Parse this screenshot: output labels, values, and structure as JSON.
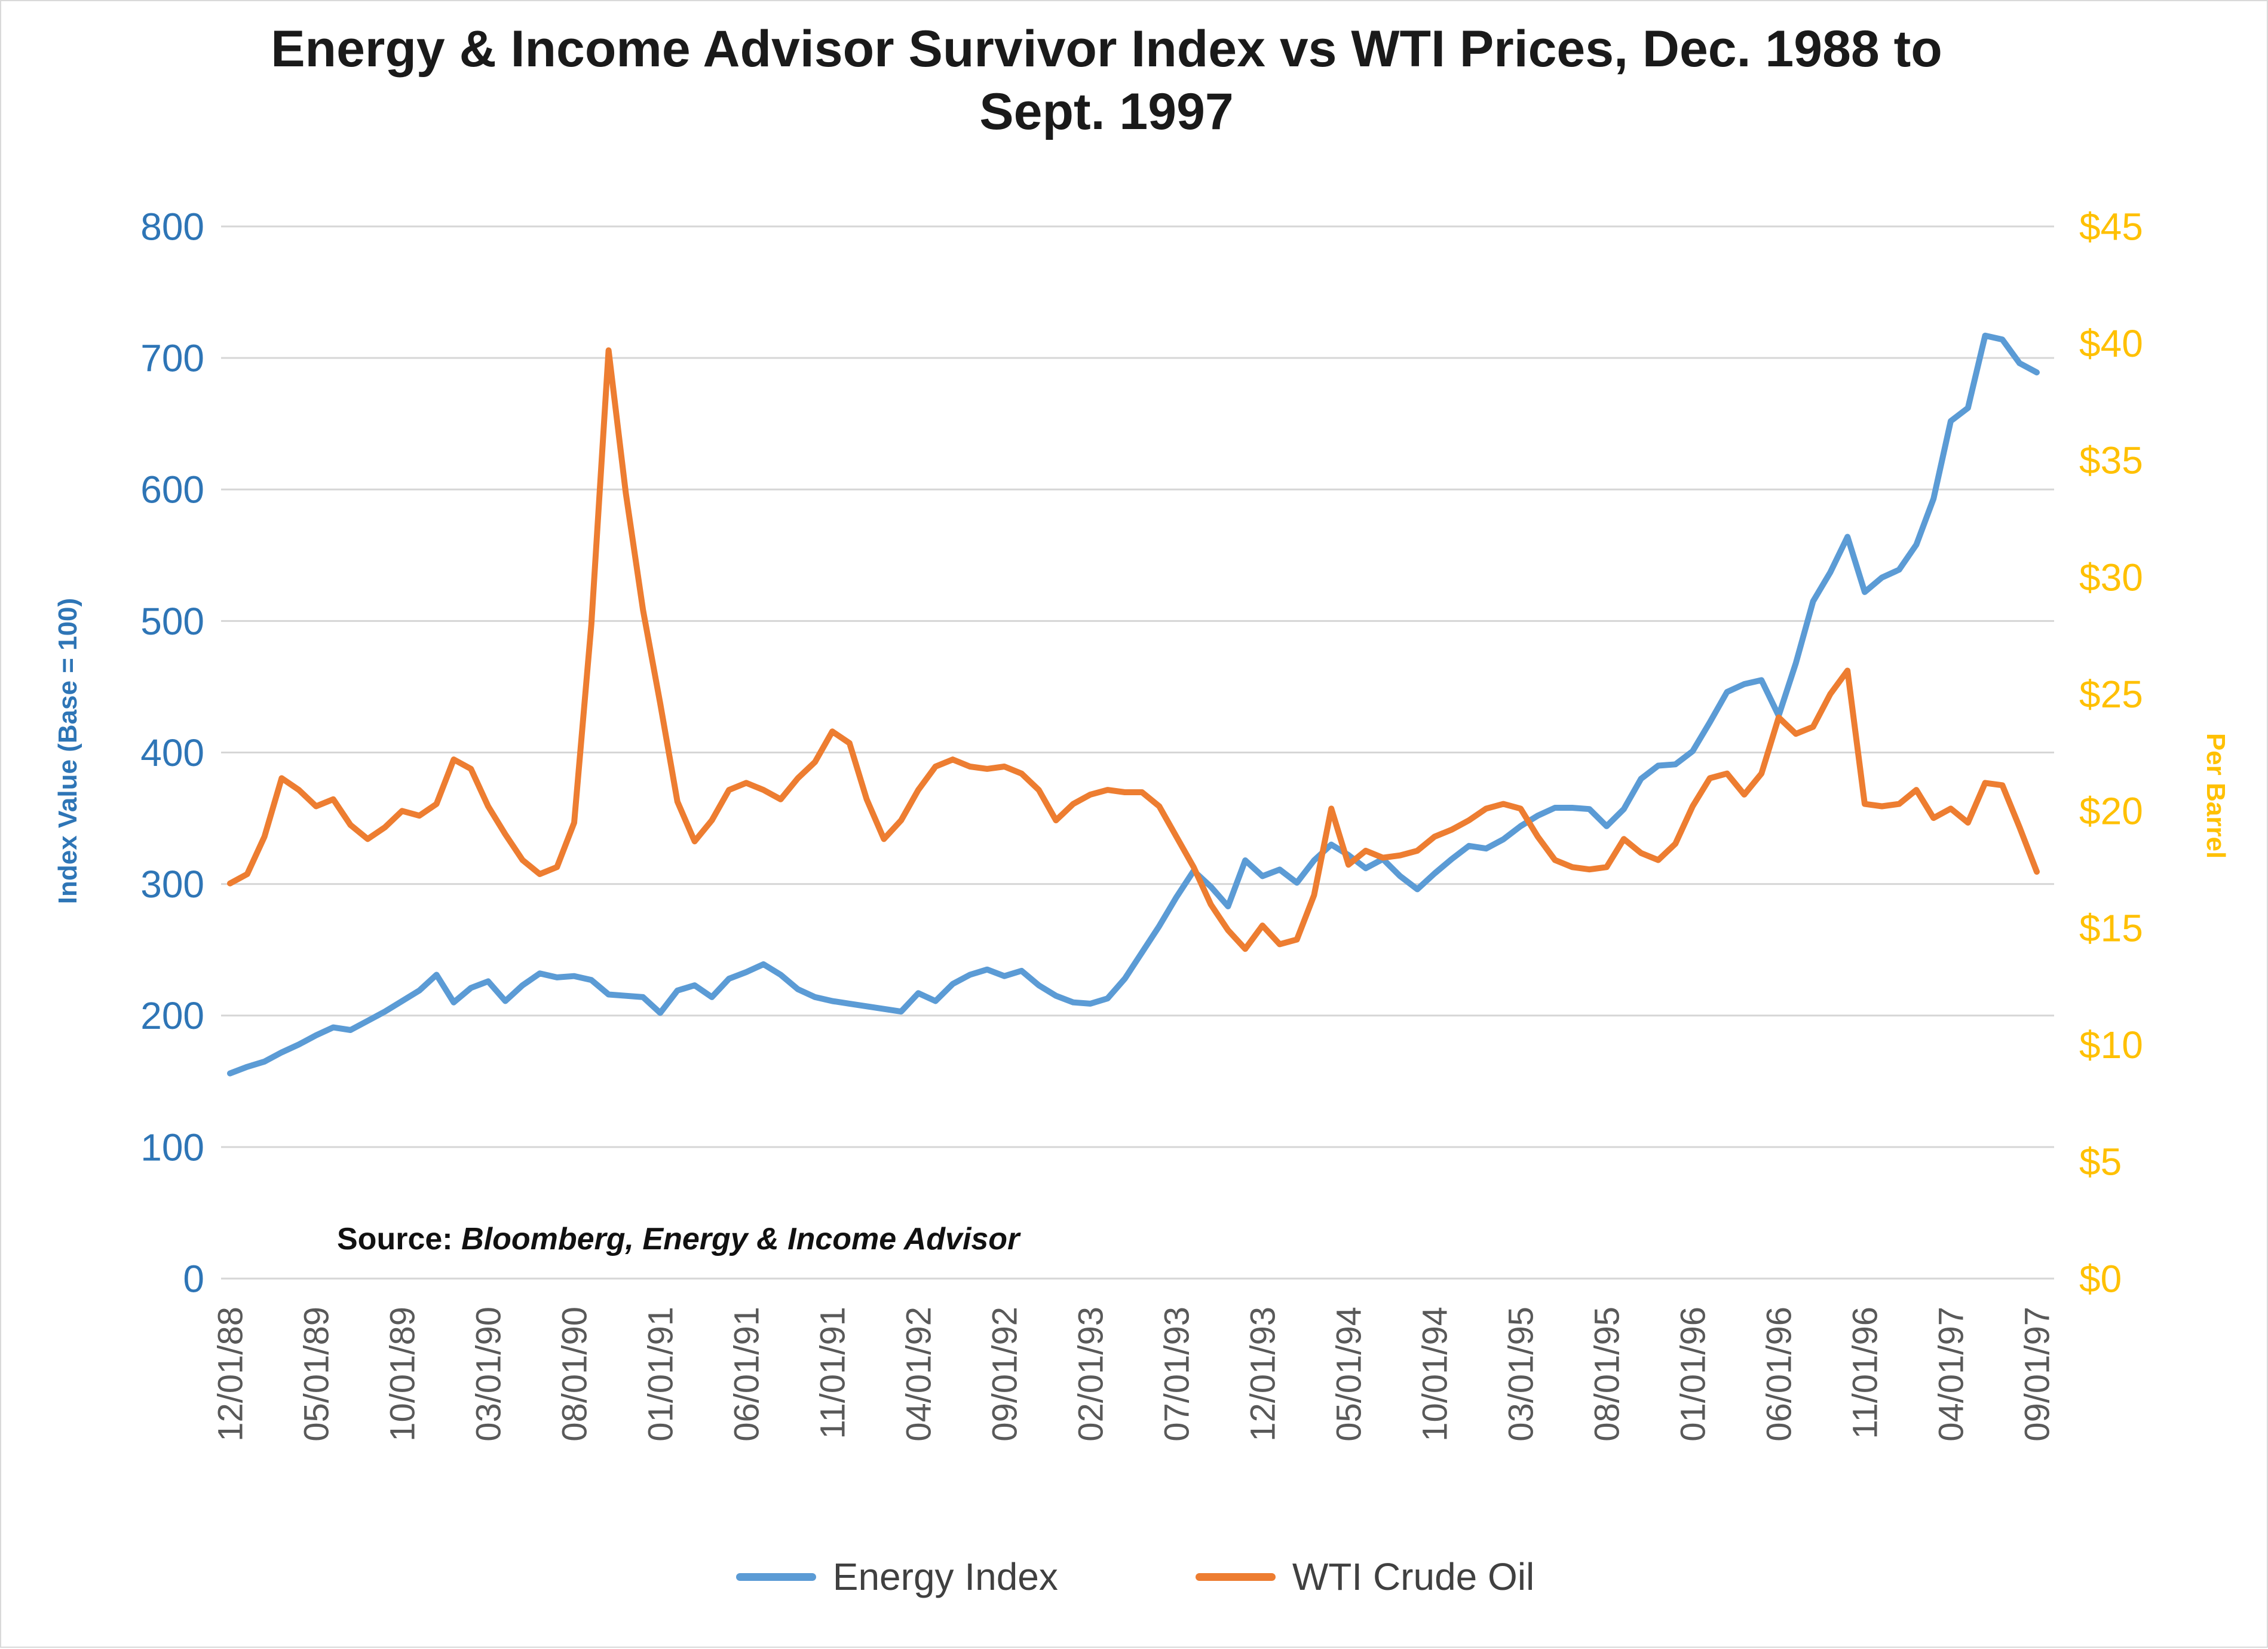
{
  "title": {
    "line1": "Energy & Income Advisor Survivor Index vs WTI Prices, Dec. 1988 to",
    "line2": "Sept. 1997"
  },
  "source": {
    "label": "Source:",
    "text": "Bloomberg, Energy & Income Advisor"
  },
  "legend": [
    {
      "label": "Energy Index",
      "color": "#5B9BD5"
    },
    {
      "label": "WTI Crude Oil",
      "color": "#ED7D31"
    }
  ],
  "colors": {
    "energy_index": "#5B9BD5",
    "wti_crude": "#ED7D31",
    "left_axis_text": "#2E75B6",
    "right_axis_text": "#FFC000",
    "x_axis_text": "#595959",
    "gridline": "#D6D6D6"
  },
  "chart_data": {
    "type": "line",
    "title": "Energy & Income Advisor Survivor Index vs WTI Prices, Dec. 1988 to Sept. 1997",
    "start_month": "1988-12",
    "frequency": "monthly",
    "grid": "horizontal",
    "legend_position": "bottom",
    "x_tick_labels": [
      "12/01/88",
      "05/01/89",
      "10/01/89",
      "03/01/90",
      "08/01/90",
      "01/01/91",
      "06/01/91",
      "11/01/91",
      "04/01/92",
      "09/01/92",
      "02/01/93",
      "07/01/93",
      "12/01/93",
      "05/01/94",
      "10/01/94",
      "03/01/95",
      "08/01/95",
      "01/01/96",
      "06/01/96",
      "11/01/96",
      "04/01/97",
      "09/01/97"
    ],
    "x_tick_every": 5,
    "left_axis": {
      "title": "Index Value (Base = 100)",
      "min": 0,
      "max": 800,
      "step": 100,
      "tick_labels": [
        "800",
        "700",
        "600",
        "500",
        "400",
        "300",
        "200",
        "100",
        "0"
      ]
    },
    "right_axis": {
      "title": "Per Barrel",
      "min": 0,
      "max": 45,
      "step": 5,
      "tick_labels": [
        "$45",
        "$40",
        "$35",
        "$30",
        "$25",
        "$20",
        "$15",
        "$10",
        "$5",
        "$0"
      ]
    },
    "series": [
      {
        "name": "Energy Index",
        "axis": "left",
        "color": "#5B9BD5",
        "values": [
          156,
          161,
          165,
          172,
          178,
          185,
          191,
          189,
          196,
          203,
          211,
          219,
          231,
          210,
          221,
          226,
          211,
          223,
          232,
          229,
          230,
          227,
          216,
          215,
          214,
          202,
          219,
          223,
          214,
          228,
          233,
          239,
          231,
          220,
          214,
          211,
          209,
          207,
          205,
          203,
          217,
          211,
          224,
          231,
          235,
          230,
          234,
          223,
          215,
          210,
          209,
          213,
          228,
          248,
          268,
          290,
          310,
          298,
          283,
          318,
          306,
          311,
          301,
          318,
          330,
          322,
          312,
          319,
          306,
          296,
          308,
          319,
          329,
          327,
          334,
          344,
          352,
          358,
          358,
          357,
          344,
          357,
          380,
          390,
          391,
          401,
          423,
          446,
          452,
          455,
          428,
          468,
          515,
          537,
          564,
          522,
          533,
          539,
          558,
          593,
          652,
          662,
          717,
          714,
          696,
          689
        ]
      },
      {
        "name": "WTI Crude Oil",
        "axis": "right",
        "color": "#ED7D31",
        "values": [
          16.9,
          17.3,
          18.9,
          21.4,
          20.9,
          20.2,
          20.5,
          19.4,
          18.8,
          19.3,
          20.0,
          19.8,
          20.3,
          22.2,
          21.8,
          20.2,
          19.0,
          17.9,
          17.3,
          17.6,
          19.5,
          28.0,
          39.7,
          33.6,
          28.6,
          24.6,
          20.4,
          18.7,
          19.6,
          20.9,
          21.2,
          20.9,
          20.5,
          21.4,
          22.1,
          23.4,
          22.9,
          20.5,
          18.8,
          19.6,
          20.9,
          21.9,
          22.2,
          21.9,
          21.8,
          21.9,
          21.6,
          20.9,
          19.6,
          20.3,
          20.7,
          20.9,
          20.8,
          20.8,
          20.2,
          18.9,
          17.6,
          16.0,
          14.9,
          14.1,
          15.1,
          14.3,
          14.5,
          16.4,
          20.1,
          17.7,
          18.3,
          18.0,
          18.1,
          18.3,
          18.9,
          19.2,
          19.6,
          20.1,
          20.3,
          20.1,
          18.9,
          17.9,
          17.6,
          17.5,
          17.6,
          18.8,
          18.2,
          17.9,
          18.6,
          20.2,
          21.4,
          21.6,
          20.7,
          21.6,
          24.0,
          23.3,
          23.6,
          25.0,
          26.0,
          20.3,
          20.2,
          20.3,
          20.9,
          19.7,
          20.1,
          19.5,
          21.2,
          21.1,
          19.3,
          17.4
        ]
      }
    ]
  }
}
